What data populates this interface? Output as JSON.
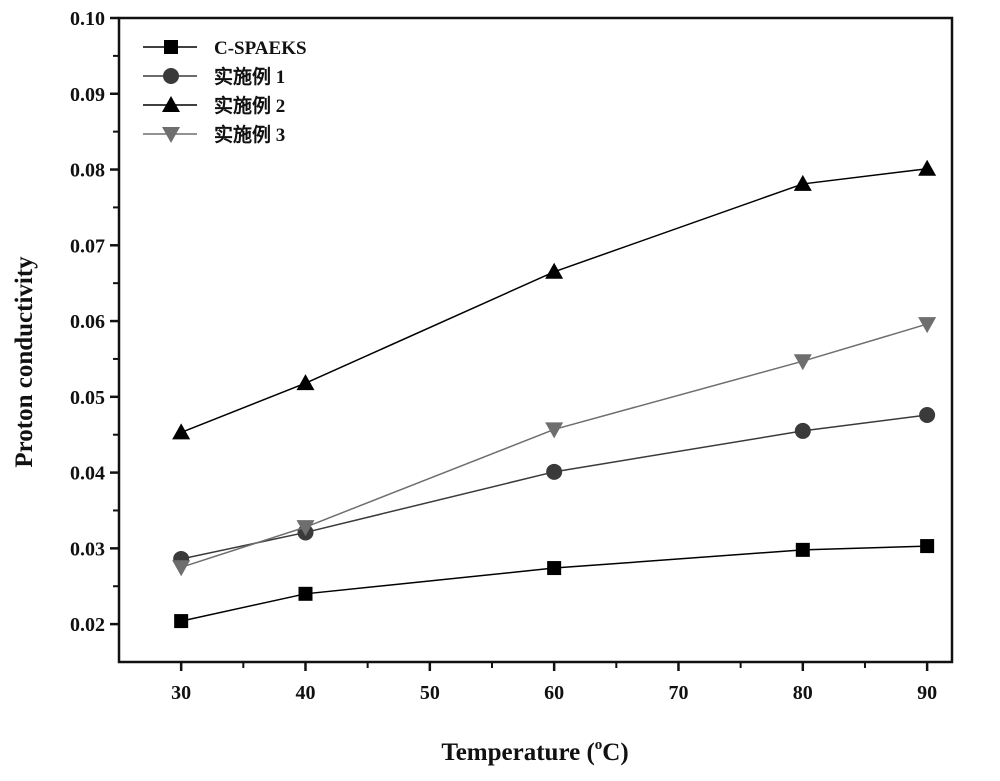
{
  "chart_data": {
    "type": "line",
    "title": "",
    "xlabel": "Temperature (",
    "xlabel_sup": "o",
    "xlabel_end": "C)",
    "ylabel": "Proton conductivity",
    "xlim": [
      25,
      92
    ],
    "ylim": [
      0.015,
      0.1
    ],
    "xticks": [
      30,
      40,
      50,
      60,
      70,
      80,
      90
    ],
    "xtick_labels": [
      "30",
      "40",
      "50",
      "60",
      "70",
      "80",
      "90"
    ],
    "yticks": [
      0.02,
      0.03,
      0.04,
      0.05,
      0.06,
      0.07,
      0.08,
      0.09,
      0.1
    ],
    "ytick_labels": [
      "0.02",
      "0.03",
      "0.04",
      "0.05",
      "0.06",
      "0.07",
      "0.08",
      "0.09",
      "0.10"
    ],
    "grid": false,
    "legend_placement": "top-left",
    "x": [
      30,
      40,
      60,
      80,
      90
    ],
    "series": [
      {
        "name": "C-SPAEKS",
        "marker": "square",
        "color": "#000000",
        "values": [
          0.0204,
          0.024,
          0.0274,
          0.0298,
          0.0303
        ]
      },
      {
        "name": "实施例 1",
        "marker": "circle",
        "color": "#3a3a3a",
        "values": [
          0.0286,
          0.0321,
          0.0401,
          0.0455,
          0.0476
        ]
      },
      {
        "name": "实施例 2",
        "marker": "triangle-up",
        "color": "#000000",
        "values": [
          0.0453,
          0.0518,
          0.0665,
          0.0781,
          0.0801
        ]
      },
      {
        "name": "实施例 3",
        "marker": "triangle-down",
        "color": "#6e6e6e",
        "values": [
          0.0275,
          0.0328,
          0.0457,
          0.0547,
          0.0596
        ]
      }
    ]
  }
}
